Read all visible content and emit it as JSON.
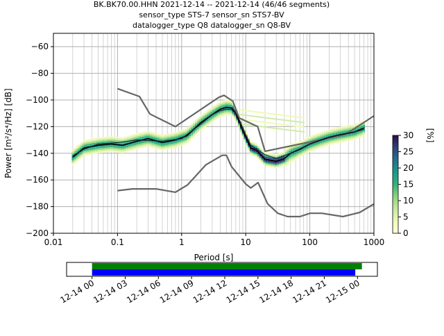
{
  "chart_data": [
    {
      "type": "heatmap",
      "title_lines": [
        "BK.BK70.00.HHN   2021-12-14 -- 2021-12-14  (46/46 segments)",
        "sensor_type STS-7 sensor_sn STS7-BV",
        "datalogger_type Q8 datalogger_sn Q8-BV"
      ],
      "xlabel": "Period [s]",
      "ylabel": "Power [m²/s⁴/Hz] [dB]",
      "x_scale": "log",
      "xlim": [
        0.01,
        1000
      ],
      "ylim": [
        -200,
        -50
      ],
      "x_ticks": [
        0.01,
        0.1,
        1,
        10,
        100,
        1000
      ],
      "x_tick_labels": [
        "0.01",
        "0.1",
        "1",
        "10",
        "100",
        "1000"
      ],
      "y_ticks": [
        -200,
        -180,
        -160,
        -140,
        -120,
        -100,
        -80,
        -60
      ],
      "y_tick_labels": [
        "−200",
        "−180",
        "−160",
        "−140",
        "−120",
        "−100",
        "−80",
        "−60"
      ],
      "grid": true,
      "colorbar": {
        "label": "[%]",
        "range": [
          0,
          30
        ],
        "ticks": [
          0,
          5,
          10,
          15,
          20,
          25,
          30
        ],
        "tick_labels": [
          "0",
          "5",
          "10",
          "15",
          "20",
          "25",
          "30"
        ]
      },
      "series": [
        {
          "role": "noise-model-high",
          "color": "#666666",
          "x": [
            0.1,
            0.22,
            0.32,
            0.8,
            3.8,
            4.6,
            6.3,
            7.9,
            15.4,
            20,
            354.8,
            1000
          ],
          "y": [
            -91.5,
            -97.4,
            -110.5,
            -120.0,
            -98.0,
            -96.5,
            -101.0,
            -113.5,
            -120.0,
            -138.5,
            -126.0,
            -112.0
          ]
        },
        {
          "role": "noise-model-low",
          "color": "#666666",
          "x": [
            0.1,
            0.17,
            0.4,
            0.8,
            1.24,
            2.4,
            4.3,
            5.0,
            6.0,
            10.0,
            12.0,
            15.6,
            21.9,
            31.6,
            45.0,
            70.0,
            101.0,
            154.0,
            328.0,
            600.0,
            1000.0
          ],
          "y": [
            -168.0,
            -166.7,
            -166.7,
            -169.2,
            -163.7,
            -148.6,
            -141.5,
            -141.5,
            -150.0,
            -163.0,
            -166.0,
            -162.0,
            -177.8,
            -185.0,
            -187.5,
            -187.5,
            -185.0,
            -185.0,
            -187.5,
            -184.4,
            -178.0
          ]
        },
        {
          "role": "mode",
          "color": "#000000",
          "x": [
            0.02,
            0.03,
            0.05,
            0.08,
            0.12,
            0.2,
            0.3,
            0.5,
            0.8,
            1.2,
            2.0,
            3.0,
            4.0,
            5.0,
            6.0,
            7.0,
            8.0,
            9.0,
            10.0,
            12.0,
            15.0,
            20.0,
            30.0,
            40.0,
            50.0,
            70.0,
            100.0,
            150.0,
            200.0,
            300.0,
            500.0,
            700.0
          ],
          "y": [
            -143,
            -136,
            -134,
            -133,
            -134,
            -131,
            -129,
            -132,
            -130,
            -127,
            -117,
            -111,
            -107,
            -105.5,
            -106,
            -110,
            -117,
            -123,
            -128,
            -136,
            -138,
            -144.5,
            -146,
            -144,
            -140,
            -137,
            -133,
            -130,
            -128,
            -126,
            -124,
            -121
          ]
        },
        {
          "role": "mean",
          "color": "#1a1a1a",
          "x": [
            0.02,
            0.03,
            0.05,
            0.1,
            0.2,
            0.5,
            1.0,
            2.0,
            3.0,
            4.0,
            5.0,
            6.0,
            7.0,
            8.0,
            10.0,
            12.0,
            15.0,
            20.0,
            30.0,
            50.0,
            100.0,
            200.0,
            500.0,
            700.0
          ],
          "y": [
            -142,
            -137,
            -133,
            -132,
            -130,
            -131,
            -129,
            -118,
            -111,
            -108,
            -107,
            -107,
            -110,
            -115,
            -126,
            -134,
            -137,
            -141,
            -144,
            -140,
            -133,
            -128,
            -124,
            -122
          ]
        }
      ]
    },
    {
      "type": "bar",
      "role": "data-availability-timeline",
      "x_tick_labels": [
        "12-14 00",
        "12-14 03",
        "12-14 06",
        "12-14 09",
        "12-14 12",
        "12-14 15",
        "12-14 18",
        "12-14 21",
        "12-15 00"
      ],
      "x_range_hours": [
        -2.3,
        25.8
      ],
      "series": [
        {
          "name": "",
          "color": "#008000",
          "start_hour": 0.0,
          "end_hour": 24.4
        },
        {
          "name": "",
          "color": "#0000ff",
          "start_hour": 0.0,
          "end_hour": 23.8
        }
      ]
    }
  ]
}
